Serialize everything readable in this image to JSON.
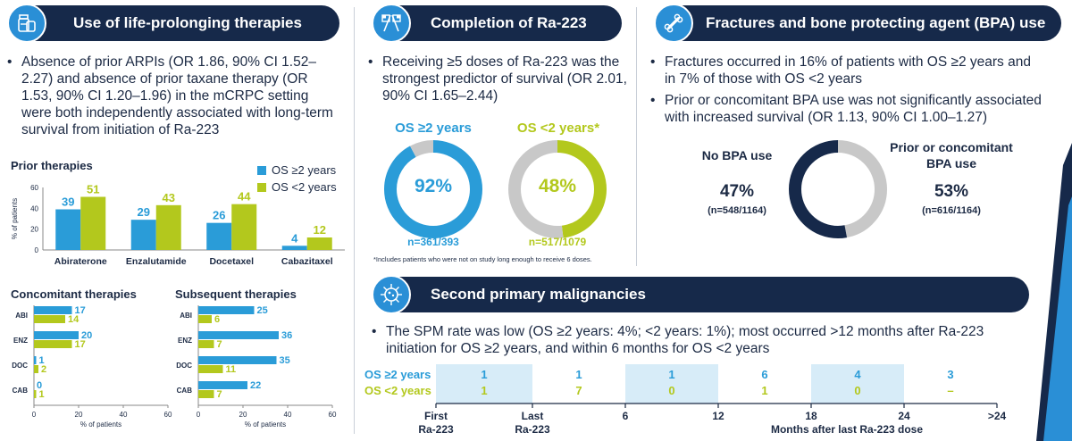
{
  "colors": {
    "navy": "#16294a",
    "blue": "#2a9cd8",
    "green": "#b3c81d",
    "grey": "#c8c8c8",
    "dark": "#1c2a44"
  },
  "sections": {
    "therapies": {
      "title": "Use of life-prolonging therapies",
      "icon": "medicine-bottles-icon",
      "bullet": "Absence of prior ARPIs (OR 1.86, 90% CI 1.52–2.27) and absence of prior taxane therapy (OR 1.53, 90% CI 1.20–1.96) in the mCRPC setting were both independently associated with long-term survival from initiation of Ra-223"
    },
    "completion": {
      "title": "Completion of Ra-223",
      "icon": "checkered-flags-icon",
      "bullet": "Receiving ≥5 doses of Ra-223 was the strongest predictor of survival (OR 2.01, 90% CI 1.65–2.44)",
      "footnote": "*Includes patients who were not on study long enough to receive 6 doses."
    },
    "fractures": {
      "title": "Fractures and bone protecting agent (BPA) use",
      "icon": "bone-icon",
      "bullets": [
        "Fractures occurred in 16% of patients with OS ≥2 years and in 7% of those with OS <2 years",
        "Prior or concomitant BPA use was not significantly associated with increased survival (OR 1.13, 90% CI 1.00–1.27)"
      ]
    },
    "spm": {
      "title": "Second primary malignancies",
      "icon": "virus-cell-icon",
      "bullet": "The SPM rate was low (OS ≥2 years: 4%; <2 years: 1%); most occurred >12 months after Ra-223 initiation for OS ≥2 years, and within 6 months for OS <2 years"
    }
  },
  "chart_data": [
    {
      "type": "bar",
      "title": "Prior therapies",
      "ylabel": "% of patients",
      "ylim": [
        0,
        60
      ],
      "yticks": [
        0,
        20,
        40,
        60
      ],
      "categories": [
        "Abiraterone",
        "Enzalutamide",
        "Docetaxel",
        "Cabazitaxel"
      ],
      "series": [
        {
          "name": "OS ≥2 years",
          "color": "#2a9cd8",
          "values": [
            39,
            29,
            26,
            4
          ]
        },
        {
          "name": "OS <2 years",
          "color": "#b3c81d",
          "values": [
            51,
            43,
            44,
            12
          ]
        }
      ]
    },
    {
      "type": "bar",
      "orientation": "horizontal",
      "title": "Concomitant therapies",
      "xlabel": "% of patients",
      "xlim": [
        0,
        60
      ],
      "xticks": [
        0,
        20,
        40,
        60
      ],
      "categories": [
        "ABI",
        "ENZ",
        "DOC",
        "CAB"
      ],
      "series": [
        {
          "name": "OS ≥2 years",
          "color": "#2a9cd8",
          "values": [
            17,
            20,
            1,
            0
          ]
        },
        {
          "name": "OS <2 years",
          "color": "#b3c81d",
          "values": [
            14,
            17,
            2,
            1
          ]
        }
      ]
    },
    {
      "type": "bar",
      "orientation": "horizontal",
      "title": "Subsequent therapies",
      "xlabel": "% of patients",
      "xlim": [
        0,
        60
      ],
      "xticks": [
        0,
        20,
        40,
        60
      ],
      "categories": [
        "ABI",
        "ENZ",
        "DOC",
        "CAB"
      ],
      "series": [
        {
          "name": "OS ≥2 years",
          "color": "#2a9cd8",
          "values": [
            25,
            36,
            35,
            22
          ]
        },
        {
          "name": "OS <2 years",
          "color": "#b3c81d",
          "values": [
            6,
            7,
            11,
            7
          ]
        }
      ]
    },
    {
      "type": "pie",
      "title": "OS ≥2 years",
      "center_label": "92%",
      "note": "n=361/393",
      "values": [
        92,
        8
      ],
      "colors": [
        "#2a9cd8",
        "#c8c8c8"
      ]
    },
    {
      "type": "pie",
      "title": "OS <2 years*",
      "center_label": "48%",
      "note": "n=517/1079",
      "values": [
        48,
        52
      ],
      "colors": [
        "#b3c81d",
        "#c8c8c8"
      ]
    },
    {
      "type": "pie",
      "labels": [
        "No BPA use",
        "Prior or concomitant BPA use"
      ],
      "values": [
        47,
        53
      ],
      "value_labels": [
        "47%",
        "53%"
      ],
      "notes": [
        "(n=548/1164)",
        "(n=616/1164)"
      ],
      "colors": [
        "#c8c8c8",
        "#16294a"
      ]
    },
    {
      "type": "table",
      "title": "Second primary malignancies timeline",
      "xlabel": "Months after last Ra-223 dose",
      "axis_labels": [
        {
          "l1": "First",
          "l2": "Ra-223"
        },
        {
          "l1": "Last",
          "l2": "Ra-223"
        },
        {
          "l1": "6",
          "l2": ""
        },
        {
          "l1": "12",
          "l2": ""
        },
        {
          "l1": "18",
          "l2": ""
        },
        {
          "l1": "24",
          "l2": ""
        },
        {
          "l1": ">24",
          "l2": ""
        }
      ],
      "rows": [
        {
          "name": "OS ≥2 years",
          "color": "#2a9cd8",
          "values": [
            "1",
            "1",
            "1",
            "6",
            "4",
            "3"
          ]
        },
        {
          "name": "OS <2 years",
          "color": "#b3c81d",
          "values": [
            "1",
            "7",
            "0",
            "1",
            "0",
            "–"
          ]
        }
      ]
    }
  ]
}
